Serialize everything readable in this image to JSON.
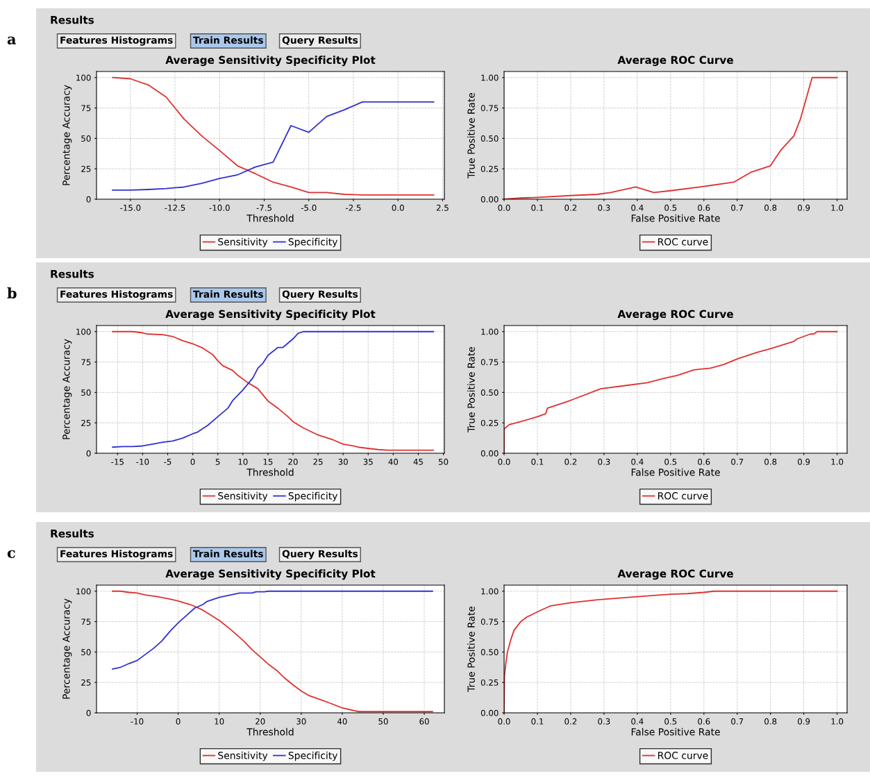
{
  "chart_data": [
    {
      "type": "line",
      "title": "Average Sensitivity Specificity Plot",
      "xlabel": "Threshold",
      "ylabel": "Percentage Accuracy",
      "annotations": [
        "a",
        "Results",
        "Features Histograms",
        "Train Results",
        "Query Results"
      ],
      "xlim": [
        -16.9,
        2.6
      ],
      "xticks": [
        {
          "value": -15,
          "label": "-15.0"
        },
        {
          "value": -12.5,
          "label": "-12.5"
        },
        {
          "value": -10,
          "label": "-10.0"
        },
        {
          "value": -7.5,
          "label": "-7.5"
        },
        {
          "value": -5,
          "label": "-5.0"
        },
        {
          "value": -2.5,
          "label": "-2.5"
        },
        {
          "value": 0,
          "label": "0.0"
        },
        {
          "value": 2.5,
          "label": "2.5"
        }
      ],
      "ylim": [
        0,
        105
      ],
      "yticks": [
        0,
        25,
        50,
        75,
        100
      ],
      "grid": true,
      "legend": "bottom",
      "series": [
        {
          "name": "Sensitivity",
          "color": "#e03030",
          "x": [
            -16,
            -15,
            -14,
            -13,
            -12,
            -11,
            -10,
            -9,
            -8,
            -7,
            -6,
            -5,
            -4,
            -3,
            -2,
            -1,
            0,
            1,
            2
          ],
          "values": [
            100,
            99,
            94,
            84,
            66,
            52,
            40,
            27.5,
            21,
            14,
            10,
            5.5,
            5.5,
            4,
            3.5,
            3.5,
            3.5,
            3.5,
            3.5
          ]
        },
        {
          "name": "Specificity",
          "color": "#3030d0",
          "x": [
            -16,
            -15,
            -14,
            -13,
            -12,
            -11,
            -10,
            -9,
            -8,
            -7,
            -6,
            -5,
            -4,
            -3,
            -2,
            -1,
            0,
            1,
            2
          ],
          "values": [
            7.5,
            7.5,
            8,
            8.8,
            10,
            13,
            17,
            20,
            26.5,
            30.5,
            60.5,
            55,
            68,
            73.5,
            80,
            80,
            80,
            80,
            80
          ]
        }
      ]
    },
    {
      "type": "line",
      "title": "Average ROC Curve",
      "xlabel": "False Positive Rate",
      "ylabel": "True Positive Rate",
      "xlim": [
        0,
        1.03
      ],
      "xticks": [
        {
          "value": 0,
          "label": "0.0"
        },
        {
          "value": 0.1,
          "label": "0.1"
        },
        {
          "value": 0.2,
          "label": "0.2"
        },
        {
          "value": 0.3,
          "label": "0.3"
        },
        {
          "value": 0.4,
          "label": "0.4"
        },
        {
          "value": 0.5,
          "label": "0.5"
        },
        {
          "value": 0.6,
          "label": "0.6"
        },
        {
          "value": 0.7,
          "label": "0.7"
        },
        {
          "value": 0.8,
          "label": "0.8"
        },
        {
          "value": 0.9,
          "label": "0.9"
        },
        {
          "value": 1,
          "label": "1.0"
        }
      ],
      "ylim": [
        0,
        1.05
      ],
      "yticks": [
        {
          "value": 0,
          "label": "0.00"
        },
        {
          "value": 0.25,
          "label": "0.25"
        },
        {
          "value": 0.5,
          "label": "0.50"
        },
        {
          "value": 0.75,
          "label": "0.75"
        },
        {
          "value": 1,
          "label": "1.00"
        }
      ],
      "grid": true,
      "legend": "bottom",
      "series": [
        {
          "name": "ROC curve",
          "color": "#e03030",
          "x": [
            0,
            0.05,
            0.1,
            0.2,
            0.28,
            0.32,
            0.395,
            0.45,
            0.5,
            0.6,
            0.69,
            0.74,
            0.8,
            0.83,
            0.87,
            0.89,
            0.925,
            1.0
          ],
          "values": [
            0,
            0.01,
            0.015,
            0.03,
            0.04,
            0.055,
            0.1,
            0.055,
            0.07,
            0.105,
            0.14,
            0.22,
            0.275,
            0.4,
            0.52,
            0.66,
            1.0,
            1.0
          ]
        }
      ]
    },
    {
      "type": "line",
      "title": "Average Sensitivity Specificity Plot",
      "xlabel": "Threshold",
      "ylabel": "Percentage Accuracy",
      "annotations": [
        "b",
        "Results",
        "Features Histograms",
        "Train Results",
        "Query Results"
      ],
      "xlim": [
        -19.2,
        50.2
      ],
      "xticks": [
        -15,
        -10,
        -5,
        0,
        5,
        10,
        15,
        20,
        25,
        30,
        35,
        40,
        45,
        50
      ],
      "ylim": [
        0,
        105
      ],
      "yticks": [
        0,
        25,
        50,
        75,
        100
      ],
      "grid": true,
      "legend": "bottom",
      "series": [
        {
          "name": "Sensitivity",
          "color": "#e03030",
          "x": [
            -16,
            -12,
            -10,
            -9,
            -6,
            -4,
            -2,
            0,
            2,
            4,
            5,
            6,
            8,
            9,
            11,
            13,
            14,
            15,
            17,
            19,
            20,
            22,
            24,
            25,
            28,
            30,
            32,
            33,
            35,
            37,
            39,
            48
          ],
          "values": [
            100,
            100,
            99,
            98,
            97.5,
            96,
            92.5,
            90,
            86.5,
            81,
            76,
            72,
            68,
            64,
            58,
            53,
            48,
            43,
            37,
            30,
            26,
            21,
            17,
            15,
            11,
            7.5,
            6,
            5,
            4,
            3,
            2.5,
            2.5
          ]
        },
        {
          "name": "Specificity",
          "color": "#3030d0",
          "x": [
            -16,
            -14,
            -12,
            -10,
            -8,
            -6,
            -4,
            -2,
            0,
            1,
            3,
            5,
            7,
            8,
            10,
            12,
            13,
            14,
            15,
            17,
            18,
            20,
            21,
            22,
            48
          ],
          "values": [
            5,
            5.5,
            5.5,
            6,
            7.5,
            9,
            10,
            12.5,
            16,
            17.5,
            23,
            30,
            37,
            43.5,
            52,
            62,
            70,
            74,
            80.5,
            87,
            87,
            94,
            98.5,
            100,
            100
          ]
        }
      ]
    },
    {
      "type": "line",
      "title": "Average ROC Curve",
      "xlabel": "False Positive Rate",
      "ylabel": "True Positive Rate",
      "xlim": [
        0,
        1.03
      ],
      "xticks": [
        {
          "value": 0,
          "label": "0.0"
        },
        {
          "value": 0.1,
          "label": "0.1"
        },
        {
          "value": 0.2,
          "label": "0.2"
        },
        {
          "value": 0.3,
          "label": "0.3"
        },
        {
          "value": 0.4,
          "label": "0.4"
        },
        {
          "value": 0.5,
          "label": "0.5"
        },
        {
          "value": 0.6,
          "label": "0.6"
        },
        {
          "value": 0.7,
          "label": "0.7"
        },
        {
          "value": 0.8,
          "label": "0.8"
        },
        {
          "value": 0.9,
          "label": "0.9"
        },
        {
          "value": 1,
          "label": "1.0"
        }
      ],
      "ylim": [
        0,
        1.05
      ],
      "yticks": [
        {
          "value": 0,
          "label": "0.00"
        },
        {
          "value": 0.25,
          "label": "0.25"
        },
        {
          "value": 0.5,
          "label": "0.50"
        },
        {
          "value": 0.75,
          "label": "0.75"
        },
        {
          "value": 1,
          "label": "1.00"
        }
      ],
      "grid": true,
      "legend": "bottom",
      "series": [
        {
          "name": "ROC curve",
          "color": "#e03030",
          "x": [
            0,
            0,
            0.015,
            0.05,
            0.1,
            0.125,
            0.13,
            0.2,
            0.29,
            0.36,
            0.43,
            0.48,
            0.52,
            0.57,
            0.62,
            0.66,
            0.7,
            0.76,
            0.8,
            0.87,
            0.88,
            0.9,
            0.92,
            0.93,
            0.94,
            1.0
          ],
          "values": [
            0,
            0.2,
            0.235,
            0.26,
            0.3,
            0.325,
            0.37,
            0.435,
            0.53,
            0.555,
            0.58,
            0.615,
            0.64,
            0.685,
            0.7,
            0.73,
            0.775,
            0.83,
            0.86,
            0.92,
            0.94,
            0.96,
            0.98,
            0.98,
            1.0,
            1.0
          ]
        }
      ]
    },
    {
      "type": "line",
      "title": "Average Sensitivity Specificity Plot",
      "xlabel": "Threshold",
      "ylabel": "Percentage Accuracy",
      "annotations": [
        "c",
        "Results",
        "Features Histograms",
        "Train Results",
        "Query Results"
      ],
      "xlim": [
        -19.9,
        64.9
      ],
      "xticks": [
        -10,
        0,
        10,
        20,
        30,
        40,
        50,
        60
      ],
      "ylim": [
        0,
        105
      ],
      "yticks": [
        0,
        25,
        50,
        75,
        100
      ],
      "grid": true,
      "legend": "bottom",
      "series": [
        {
          "name": "Sensitivity",
          "color": "#e03030",
          "x": [
            -16,
            -14,
            -12,
            -10,
            -8,
            -5,
            -2,
            0,
            3,
            6,
            10,
            13,
            16,
            18,
            20,
            22,
            24,
            26,
            28,
            30,
            32,
            35,
            37,
            40,
            44,
            62
          ],
          "values": [
            100,
            100,
            99,
            98.5,
            97,
            95.5,
            93.5,
            92,
            89,
            84.5,
            76,
            68,
            59,
            52,
            46,
            40,
            35,
            28.5,
            23,
            18,
            14,
            10.5,
            8,
            4,
            1,
            1
          ]
        },
        {
          "name": "Specificity",
          "color": "#3030d0",
          "x": [
            -16,
            -14,
            -12,
            -10,
            -8,
            -6,
            -4,
            -2,
            0,
            2,
            4,
            6,
            7,
            10,
            15,
            18,
            19,
            21,
            22,
            62
          ],
          "values": [
            36,
            37.5,
            40.5,
            43,
            48,
            53,
            59,
            67,
            74,
            80,
            86,
            89,
            91.5,
            95,
            98.5,
            98.5,
            99.5,
            99.5,
            100,
            100
          ]
        }
      ]
    },
    {
      "type": "line",
      "title": "Average ROC Curve",
      "xlabel": "False Positive Rate",
      "ylabel": "True Positive Rate",
      "xlim": [
        0,
        1.03
      ],
      "xticks": [
        {
          "value": 0,
          "label": "0.0"
        },
        {
          "value": 0.1,
          "label": "0.1"
        },
        {
          "value": 0.2,
          "label": "0.2"
        },
        {
          "value": 0.3,
          "label": "0.3"
        },
        {
          "value": 0.4,
          "label": "0.4"
        },
        {
          "value": 0.5,
          "label": "0.5"
        },
        {
          "value": 0.6,
          "label": "0.6"
        },
        {
          "value": 0.7,
          "label": "0.7"
        },
        {
          "value": 0.8,
          "label": "0.8"
        },
        {
          "value": 0.9,
          "label": "0.9"
        },
        {
          "value": 1,
          "label": "1.0"
        }
      ],
      "ylim": [
        0,
        1.05
      ],
      "yticks": [
        {
          "value": 0,
          "label": "0.00"
        },
        {
          "value": 0.25,
          "label": "0.25"
        },
        {
          "value": 0.5,
          "label": "0.50"
        },
        {
          "value": 0.75,
          "label": "0.75"
        },
        {
          "value": 1,
          "label": "1.00"
        }
      ],
      "grid": true,
      "legend": "bottom",
      "series": [
        {
          "name": "ROC curve",
          "color": "#e03030",
          "x": [
            0,
            0.001,
            0.005,
            0.01,
            0.02,
            0.03,
            0.05,
            0.07,
            0.1,
            0.14,
            0.2,
            0.28,
            0.4,
            0.5,
            0.55,
            0.6,
            0.63,
            1.0
          ],
          "values": [
            0,
            0.3,
            0.4,
            0.5,
            0.6,
            0.68,
            0.75,
            0.79,
            0.83,
            0.88,
            0.905,
            0.93,
            0.955,
            0.975,
            0.98,
            0.99,
            1.0,
            1.0
          ]
        }
      ]
    }
  ]
}
